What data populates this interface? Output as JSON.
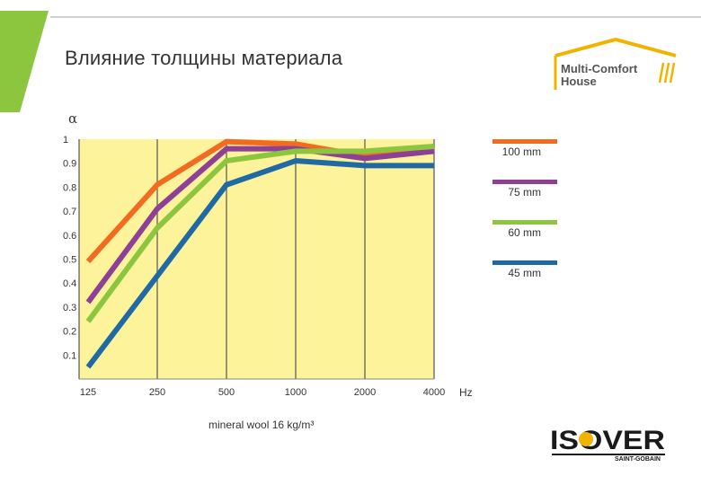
{
  "slide": {
    "title": "Влияние толщины материала"
  },
  "colors": {
    "accent_green": "#8cc63f",
    "plot_bg": "#fdf39b",
    "axis": "#555555"
  },
  "chart_data": {
    "type": "line",
    "title": "",
    "ylabel": "α",
    "xlabel": "Hz",
    "note": "mineral wool 16 kg/m³",
    "x": [
      "125",
      "250",
      "500",
      "1000",
      "2000",
      "4000"
    ],
    "ylim": [
      0,
      1
    ],
    "yticks": [
      "0.1",
      "0.2",
      "0.3",
      "0.4",
      "0.5",
      "0.6",
      "0.7",
      "0.8",
      "0.9",
      "1"
    ],
    "grid": true,
    "legend_position": "right",
    "series": [
      {
        "name": "100 mm",
        "color": "#f26b21",
        "values": [
          0.49,
          0.81,
          0.99,
          0.98,
          0.93,
          0.96
        ]
      },
      {
        "name": "75 mm",
        "color": "#8e3f96",
        "values": [
          0.32,
          0.71,
          0.96,
          0.96,
          0.92,
          0.95
        ]
      },
      {
        "name": "60 mm",
        "color": "#8cc63f",
        "values": [
          0.24,
          0.63,
          0.91,
          0.95,
          0.95,
          0.97
        ]
      },
      {
        "name": "45 mm",
        "color": "#1f6aa5",
        "values": [
          0.05,
          0.43,
          0.81,
          0.91,
          0.89,
          0.89
        ]
      }
    ]
  },
  "logos": {
    "mhc_line1": "Multi-Comfort",
    "mhc_line2": "House",
    "isover": "ISOVER",
    "saint_gobain": "SAINT-GOBAIN"
  }
}
